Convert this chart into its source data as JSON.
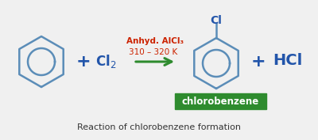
{
  "bg_color": "#f0f0f0",
  "benzene_color": "#5b8db8",
  "green_color": "#2e8b2e",
  "red_color": "#cc2200",
  "blue_color": "#2255aa",
  "white_color": "#ffffff",
  "catalyst_text": "Anhyd. AlCl₃",
  "temp_text": "310 – 320 K",
  "caption": "Reaction of chlorobenzene formation",
  "figw": 4.0,
  "figh": 1.77,
  "dpi": 100
}
